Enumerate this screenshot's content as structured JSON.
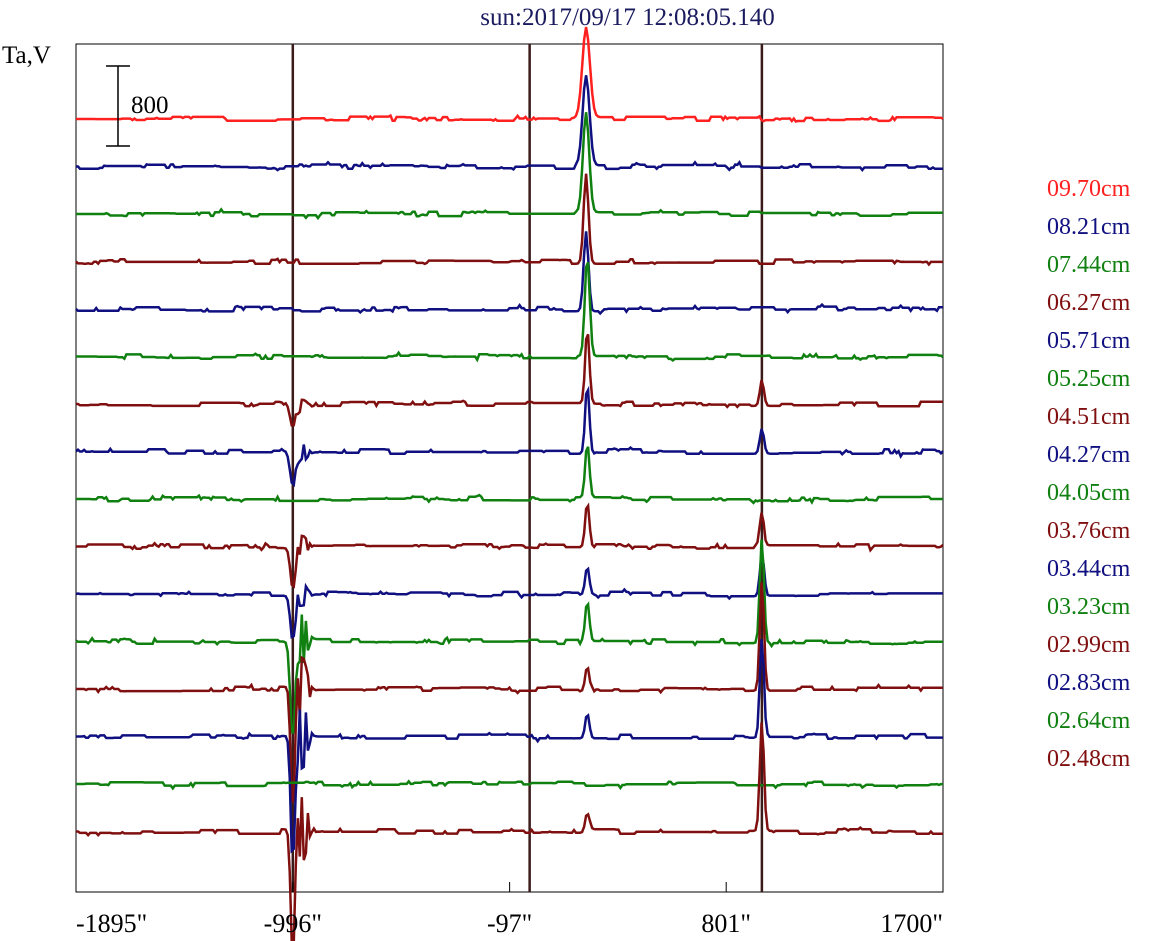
{
  "chart_data": {
    "type": "line",
    "title": "sun:2017/09/17 12:08:05.140",
    "ylabel": "Ta,V",
    "scale_bar_label": "800",
    "xlim": [
      -1895,
      1700
    ],
    "x_ticks": [
      {
        "value": -1895,
        "label": "-1895\""
      },
      {
        "value": -996,
        "label": "-996\""
      },
      {
        "value": -97,
        "label": "-97\""
      },
      {
        "value": 801,
        "label": "801\""
      },
      {
        "value": 1700,
        "label": "1700\""
      }
    ],
    "markers": [
      -996,
      -14,
      949
    ],
    "grid": false,
    "legend_placement": "right",
    "series": [
      {
        "name": "09.70cm",
        "color": "#ff2020",
        "offset": 0,
        "events": [
          {
            "x": 220,
            "amp": 900,
            "w": 22
          }
        ]
      },
      {
        "name": "08.21cm",
        "color": "#101080",
        "offset": 1,
        "events": [
          {
            "x": 220,
            "amp": 900,
            "w": 20
          }
        ]
      },
      {
        "name": "07.44cm",
        "color": "#108010",
        "offset": 2,
        "events": [
          {
            "x": 220,
            "amp": 1000,
            "w": 18
          }
        ]
      },
      {
        "name": "06.27cm",
        "color": "#801010",
        "offset": 3,
        "events": [
          {
            "x": 220,
            "amp": 900,
            "w": 14
          }
        ]
      },
      {
        "name": "05.71cm",
        "color": "#101080",
        "offset": 4,
        "events": [
          {
            "x": 220,
            "amp": 800,
            "w": 14
          }
        ]
      },
      {
        "name": "05.25cm",
        "color": "#108010",
        "offset": 5,
        "events": [
          {
            "x": 225,
            "amp": 1000,
            "w": 14
          }
        ]
      },
      {
        "name": "04.51cm",
        "color": "#801010",
        "offset": 6,
        "events": [
          {
            "x": 225,
            "amp": 750,
            "w": 12
          },
          {
            "x": 949,
            "amp": 250,
            "w": 12
          },
          {
            "x": -996,
            "amp": -250,
            "w": 16
          }
        ]
      },
      {
        "name": "04.27cm",
        "color": "#101080",
        "offset": 7,
        "events": [
          {
            "x": 225,
            "amp": 700,
            "w": 12
          },
          {
            "x": 949,
            "amp": 250,
            "w": 12
          },
          {
            "x": -996,
            "amp": -350,
            "w": 16
          }
        ]
      },
      {
        "name": "04.05cm",
        "color": "#108010",
        "offset": 8,
        "events": [
          {
            "x": 225,
            "amp": 550,
            "w": 12
          }
        ]
      },
      {
        "name": "03.76cm",
        "color": "#801010",
        "offset": 9,
        "events": [
          {
            "x": 225,
            "amp": 450,
            "w": 12
          },
          {
            "x": 949,
            "amp": 350,
            "w": 12
          },
          {
            "x": -996,
            "amp": -400,
            "w": 14
          }
        ]
      },
      {
        "name": "03.44cm",
        "color": "#101080",
        "offset": 10,
        "events": [
          {
            "x": 225,
            "amp": 280,
            "w": 12
          },
          {
            "x": 949,
            "amp": 400,
            "w": 12
          },
          {
            "x": -996,
            "amp": -450,
            "w": 14
          }
        ]
      },
      {
        "name": "03.23cm",
        "color": "#108010",
        "offset": 11,
        "events": [
          {
            "x": 225,
            "amp": 400,
            "w": 12
          },
          {
            "x": 949,
            "amp": 1050,
            "w": 12
          },
          {
            "x": -996,
            "amp": -1000,
            "w": 14
          }
        ]
      },
      {
        "name": "02.99cm",
        "color": "#801010",
        "offset": 12,
        "events": [
          {
            "x": 225,
            "amp": 250,
            "w": 12
          },
          {
            "x": 949,
            "amp": 1100,
            "w": 12
          },
          {
            "x": -996,
            "amp": -1300,
            "w": 12
          }
        ]
      },
      {
        "name": "02.83cm",
        "color": "#101080",
        "offset": 13,
        "events": [
          {
            "x": 225,
            "amp": 250,
            "w": 12
          },
          {
            "x": 949,
            "amp": 1000,
            "w": 12
          },
          {
            "x": -996,
            "amp": -1300,
            "w": 12
          }
        ]
      },
      {
        "name": "02.64cm",
        "color": "#108010",
        "offset": 14,
        "events": []
      },
      {
        "name": "02.48cm",
        "color": "#801010",
        "offset": 15,
        "events": [
          {
            "x": 225,
            "amp": 200,
            "w": 12
          },
          {
            "x": 949,
            "amp": 1100,
            "w": 12
          },
          {
            "x": -996,
            "amp": -1300,
            "w": 12
          }
        ]
      }
    ]
  }
}
